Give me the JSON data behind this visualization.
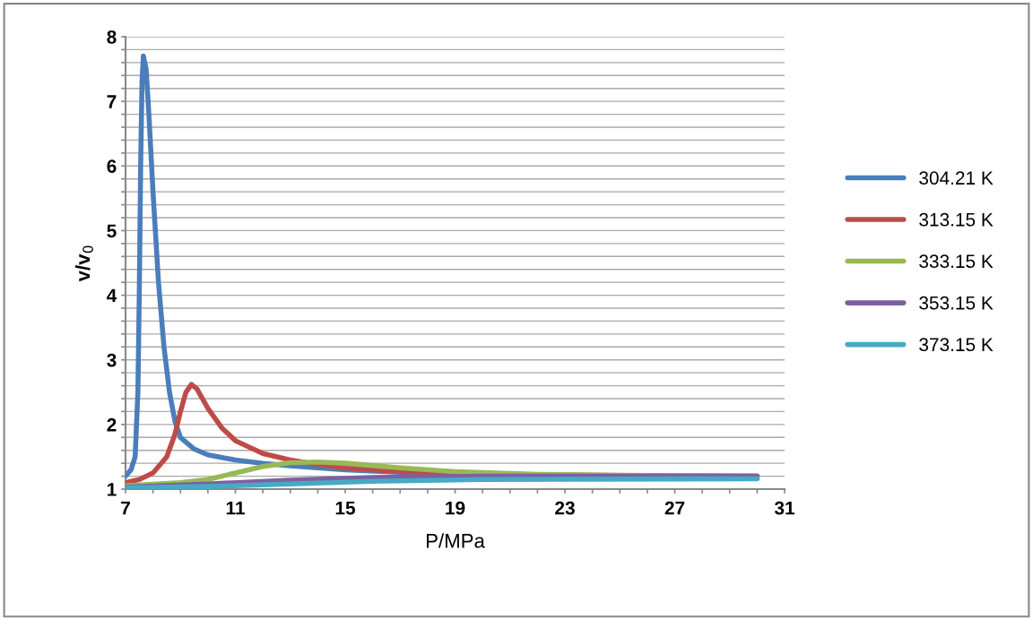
{
  "chart_data": {
    "type": "line",
    "xlabel": "P/MPa",
    "ylabel": "v/v$_{0}$",
    "xlim": [
      7,
      31
    ],
    "ylim": [
      1,
      8
    ],
    "xticks": [
      7,
      {
        "value": 8,
        "label": null
      },
      {
        "value": 9,
        "label": null
      },
      {
        "value": 10,
        "label": null
      },
      11,
      {
        "value": 12,
        "label": null
      },
      {
        "value": 13,
        "label": null
      },
      {
        "value": 14,
        "label": null
      },
      15,
      {
        "value": 16,
        "label": null
      },
      {
        "value": 17,
        "label": null
      },
      {
        "value": 18,
        "label": null
      },
      19,
      {
        "value": 20,
        "label": null
      },
      {
        "value": 21,
        "label": null
      },
      {
        "value": 22,
        "label": null
      },
      23,
      {
        "value": 24,
        "label": null
      },
      {
        "value": 25,
        "label": null
      },
      {
        "value": 26,
        "label": null
      },
      27,
      {
        "value": 28,
        "label": null
      },
      {
        "value": 29,
        "label": null
      },
      {
        "value": 30,
        "label": null
      },
      31
    ],
    "yticks": [
      1,
      {
        "value": 1.2,
        "label": null
      },
      {
        "value": 1.4,
        "label": null
      },
      {
        "value": 1.6,
        "label": null
      },
      {
        "value": 1.8,
        "label": null
      },
      2,
      {
        "value": 2.2,
        "label": null
      },
      {
        "value": 2.4,
        "label": null
      },
      {
        "value": 2.6,
        "label": null
      },
      {
        "value": 2.8,
        "label": null
      },
      3,
      {
        "value": 3.2,
        "label": null
      },
      {
        "value": 3.4,
        "label": null
      },
      {
        "value": 3.6,
        "label": null
      },
      {
        "value": 3.8,
        "label": null
      },
      4,
      {
        "value": 4.2,
        "label": null
      },
      {
        "value": 4.4,
        "label": null
      },
      {
        "value": 4.6,
        "label": null
      },
      {
        "value": 4.8,
        "label": null
      },
      5,
      {
        "value": 5.2,
        "label": null
      },
      {
        "value": 5.4,
        "label": null
      },
      {
        "value": 5.6,
        "label": null
      },
      {
        "value": 5.8,
        "label": null
      },
      6,
      {
        "value": 6.2,
        "label": null
      },
      {
        "value": 6.4,
        "label": null
      },
      {
        "value": 6.6,
        "label": null
      },
      {
        "value": 6.8,
        "label": null
      },
      7,
      {
        "value": 7.2,
        "label": null
      },
      {
        "value": 7.4,
        "label": null
      },
      {
        "value": 7.6,
        "label": null
      },
      {
        "value": 7.8,
        "label": null
      },
      8
    ],
    "grid": "y",
    "legend": "right",
    "marker": "none",
    "line_style": "solid",
    "series": [
      {
        "name": "304.21 K",
        "color": "#4a7ebb",
        "x": [
          7,
          7.2,
          7.35,
          7.45,
          7.5,
          7.55,
          7.6,
          7.65,
          7.75,
          7.85,
          8,
          8.2,
          8.4,
          8.6,
          8.8,
          9,
          9.5,
          10,
          11,
          12,
          13,
          15,
          17,
          20,
          25,
          30
        ],
        "values": [
          1.2,
          1.3,
          1.5,
          2.5,
          4,
          6,
          7.3,
          7.7,
          7.5,
          6.8,
          5.6,
          4.2,
          3.2,
          2.5,
          2.05,
          1.8,
          1.62,
          1.53,
          1.45,
          1.4,
          1.36,
          1.3,
          1.26,
          1.22,
          1.2,
          1.18
        ]
      },
      {
        "name": "313.15 K",
        "color": "#be4b48",
        "x": [
          7,
          7.5,
          8,
          8.5,
          8.8,
          9,
          9.2,
          9.4,
          9.6,
          10,
          10.5,
          11,
          12,
          13,
          14,
          15,
          17,
          20,
          25,
          30
        ],
        "values": [
          1.1,
          1.15,
          1.25,
          1.5,
          1.85,
          2.2,
          2.5,
          2.62,
          2.55,
          2.25,
          1.95,
          1.75,
          1.55,
          1.45,
          1.38,
          1.33,
          1.27,
          1.23,
          1.21,
          1.2
        ]
      },
      {
        "name": "333.15 K",
        "color": "#98b954",
        "x": [
          7,
          9,
          10,
          11,
          12,
          13,
          14,
          15,
          17,
          19,
          22,
          26,
          30
        ],
        "values": [
          1.05,
          1.1,
          1.15,
          1.25,
          1.35,
          1.41,
          1.42,
          1.4,
          1.33,
          1.27,
          1.23,
          1.21,
          1.2
        ]
      },
      {
        "name": "353.15 K",
        "color": "#7d60a0",
        "x": [
          7,
          10,
          13,
          16,
          20,
          30
        ],
        "values": [
          1.03,
          1.08,
          1.14,
          1.18,
          1.2,
          1.2
        ]
      },
      {
        "name": "373.15 K",
        "color": "#46aac5",
        "x": [
          7,
          10,
          13,
          16,
          20,
          30
        ],
        "values": [
          1.02,
          1.04,
          1.08,
          1.12,
          1.15,
          1.16
        ]
      }
    ]
  }
}
